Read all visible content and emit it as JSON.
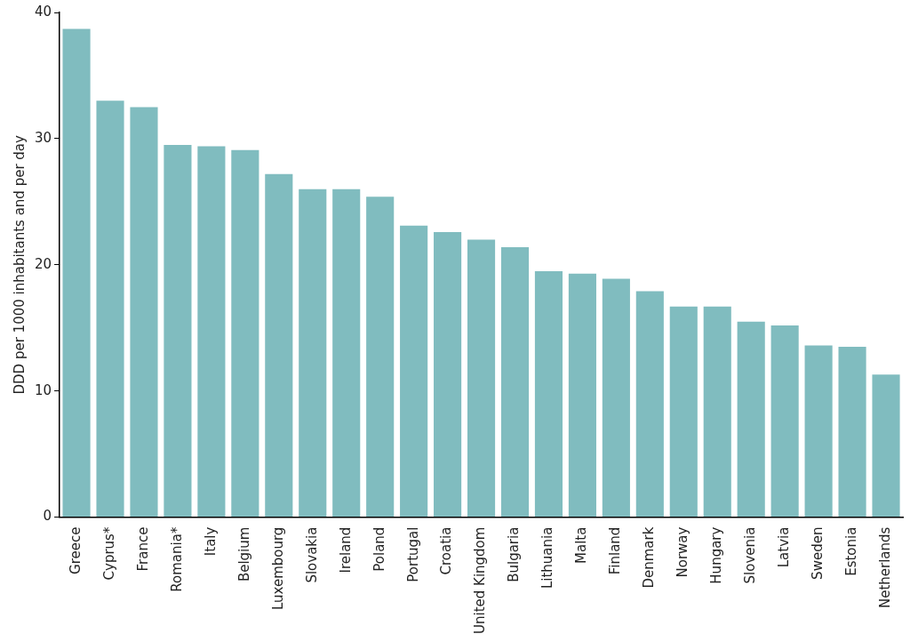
{
  "chart_data": {
    "type": "bar",
    "y_label": "DDD per 1000 inhabitants and per day",
    "categories": [
      "Greece",
      "Cyprus*",
      "France",
      "Romania*",
      "Italy",
      "Belgium",
      "Luxembourg",
      "Slovakia",
      "Ireland",
      "Poland",
      "Portugal",
      "Croatia",
      "United Kingdom",
      "Bulgaria",
      "Lithuania",
      "Malta",
      "Finland",
      "Denmark",
      "Norway",
      "Hungary",
      "Slovenia",
      "Latvia",
      "Sweden",
      "Estonia",
      "Netherlands"
    ],
    "values": [
      38.7,
      33.0,
      32.5,
      29.5,
      29.4,
      29.1,
      27.2,
      26.0,
      26.0,
      25.4,
      23.1,
      22.6,
      22.0,
      21.4,
      19.5,
      19.3,
      18.9,
      17.9,
      16.7,
      16.7,
      15.5,
      15.2,
      13.6,
      13.5,
      11.3
    ],
    "color": "#80bcbf",
    "ylim": [
      0,
      40
    ],
    "yticks": [
      0,
      10,
      20,
      30,
      40
    ],
    "grid": false
  }
}
